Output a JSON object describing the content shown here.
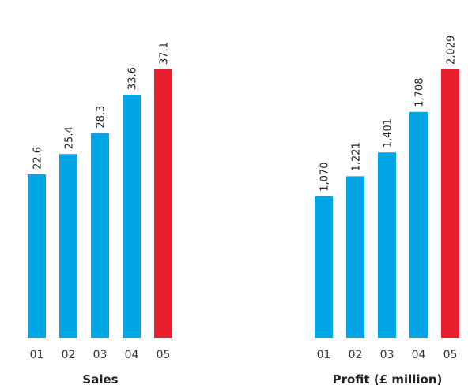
{
  "chart_data": [
    {
      "type": "bar",
      "title": "Sales",
      "categories": [
        "01",
        "02",
        "03",
        "04",
        "05"
      ],
      "values": [
        22.6,
        25.4,
        28.3,
        33.6,
        37.1
      ],
      "value_labels": [
        "22.6",
        "25.4",
        "28.3",
        "33.6",
        "37.1"
      ],
      "ylim": [
        0,
        37.1
      ],
      "grid": false,
      "highlight_index": 4
    },
    {
      "type": "bar",
      "title": "Profit (£ million)",
      "categories": [
        "01",
        "02",
        "03",
        "04",
        "05"
      ],
      "values": [
        1070,
        1221,
        1401,
        1708,
        2029
      ],
      "value_labels": [
        "1,070",
        "1,221",
        "1,401",
        "1,708",
        "2,029"
      ],
      "ylim": [
        0,
        2029
      ],
      "grid": false,
      "highlight_index": 4
    }
  ],
  "colors": {
    "bar": "#00a6e6",
    "highlight": "#e8202e"
  }
}
